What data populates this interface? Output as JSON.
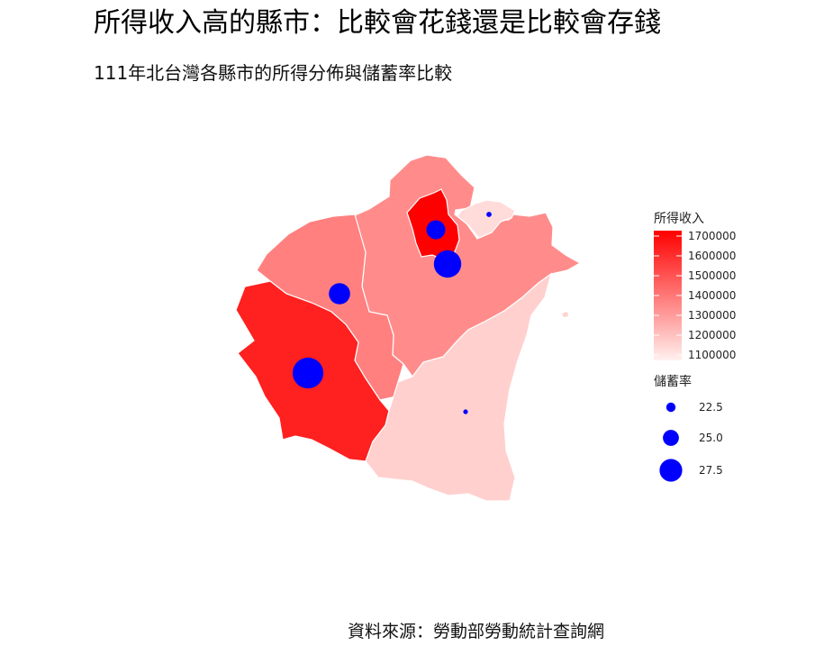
{
  "title": "所得收入高的縣市：比較會花錢還是比較會存錢",
  "subtitle": "111年北台灣各縣市的所得分佈與儲蓄率比較",
  "caption": "資料來源：勞動部勞動統計查詢網",
  "legend": {
    "income_title": "所得收入",
    "income_ticks": [
      "1700000",
      "1600000",
      "1500000",
      "1400000",
      "1300000",
      "1200000",
      "1100000"
    ],
    "income_tick_values": [
      1700000,
      1600000,
      1500000,
      1400000,
      1300000,
      1200000,
      1100000
    ],
    "income_color_low": "#fff0ee",
    "income_color_high": "#ff0000",
    "savings_title": "儲蓄率",
    "savings_ticks": [
      "22.5",
      "25.0",
      "27.5"
    ],
    "savings_tick_values": [
      22.5,
      25.0,
      27.5
    ],
    "bubble_color": "#0000ff"
  },
  "chart_data": {
    "type": "choropleth",
    "fill_variable": "所得收入",
    "size_variable": "儲蓄率",
    "regions": [
      {
        "id": "taipei",
        "income": 1750000
      },
      {
        "id": "new-taipei",
        "income": 1350000
      },
      {
        "id": "keelung",
        "income": 1150000
      },
      {
        "id": "taoyuan",
        "income": 1380000
      },
      {
        "id": "hsinchu-county",
        "income": 1620000
      },
      {
        "id": "yilan",
        "income": 1180000
      }
    ],
    "bubbles": [
      {
        "id": "taipei",
        "savings": 24.5
      },
      {
        "id": "new-taipei",
        "savings": 27.0
      },
      {
        "id": "keelung",
        "savings": 20.5
      },
      {
        "id": "taoyuan",
        "savings": 25.2
      },
      {
        "id": "hsinchu-county",
        "savings": 28.0
      },
      {
        "id": "yilan",
        "savings": 20.3
      }
    ]
  }
}
